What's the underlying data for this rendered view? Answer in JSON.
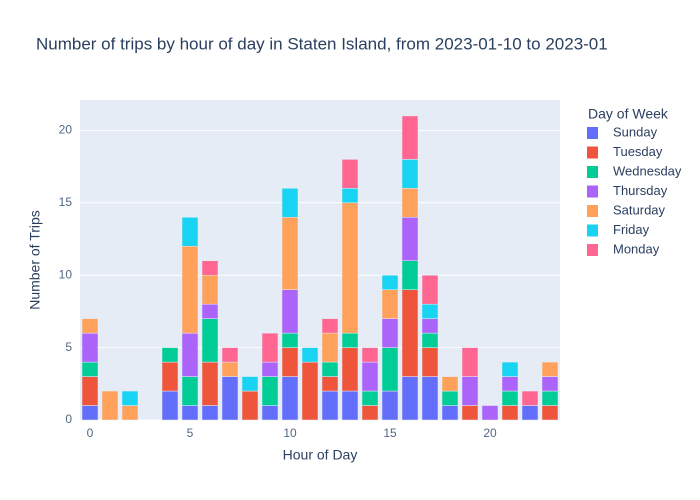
{
  "chart_data": {
    "type": "bar",
    "barmode": "stack",
    "title": "Number of trips by hour of day in Staten Island, from 2023-01-10 to 2023-01",
    "x_label": "Hour of Day",
    "y_label": "Number of Trips",
    "legend_title": "Day of Week",
    "x": [
      0,
      1,
      2,
      3,
      4,
      5,
      6,
      7,
      8,
      9,
      10,
      11,
      12,
      13,
      14,
      15,
      16,
      17,
      18,
      19,
      20,
      21,
      22,
      23
    ],
    "series": [
      {
        "name": "Sunday",
        "color": "#636efa",
        "values": [
          1,
          0,
          0,
          0,
          2,
          1,
          1,
          3,
          0,
          1,
          3,
          0,
          2,
          2,
          0,
          2,
          3,
          3,
          1,
          0,
          0,
          0,
          1,
          0
        ]
      },
      {
        "name": "Tuesday",
        "color": "#ef553b",
        "values": [
          2,
          0,
          0,
          0,
          2,
          0,
          3,
          0,
          2,
          0,
          2,
          4,
          1,
          3,
          1,
          0,
          6,
          2,
          0,
          1,
          0,
          1,
          0,
          1
        ]
      },
      {
        "name": "Wednesday",
        "color": "#00cc96",
        "values": [
          1,
          0,
          0,
          0,
          1,
          2,
          3,
          0,
          0,
          2,
          1,
          0,
          1,
          1,
          1,
          3,
          2,
          1,
          1,
          0,
          0,
          1,
          0,
          1
        ]
      },
      {
        "name": "Thursday",
        "color": "#ab63fa",
        "values": [
          2,
          0,
          0,
          0,
          0,
          3,
          1,
          0,
          0,
          1,
          3,
          0,
          0,
          0,
          2,
          2,
          3,
          1,
          0,
          2,
          1,
          1,
          0,
          1
        ]
      },
      {
        "name": "Saturday",
        "color": "#ffa15a",
        "values": [
          1,
          2,
          1,
          0,
          0,
          6,
          2,
          1,
          0,
          0,
          5,
          0,
          2,
          9,
          0,
          2,
          2,
          0,
          1,
          0,
          0,
          0,
          0,
          1
        ]
      },
      {
        "name": "Friday",
        "color": "#19d3f3",
        "values": [
          0,
          0,
          1,
          0,
          0,
          2,
          0,
          0,
          1,
          0,
          2,
          1,
          0,
          1,
          0,
          1,
          2,
          1,
          0,
          0,
          0,
          1,
          0,
          0
        ]
      },
      {
        "name": "Monday",
        "color": "#ff6692",
        "values": [
          0,
          0,
          0,
          0,
          0,
          0,
          1,
          1,
          0,
          2,
          0,
          0,
          1,
          2,
          1,
          0,
          3,
          2,
          0,
          2,
          0,
          0,
          1,
          0
        ]
      }
    ],
    "xlim": [
      -0.5,
      23.5
    ],
    "xticks": [
      0,
      5,
      10,
      15,
      20
    ],
    "ylim": [
      0,
      22.1
    ],
    "yticks": [
      0,
      5,
      10,
      15,
      20
    ],
    "grid": true,
    "legend": "right"
  }
}
